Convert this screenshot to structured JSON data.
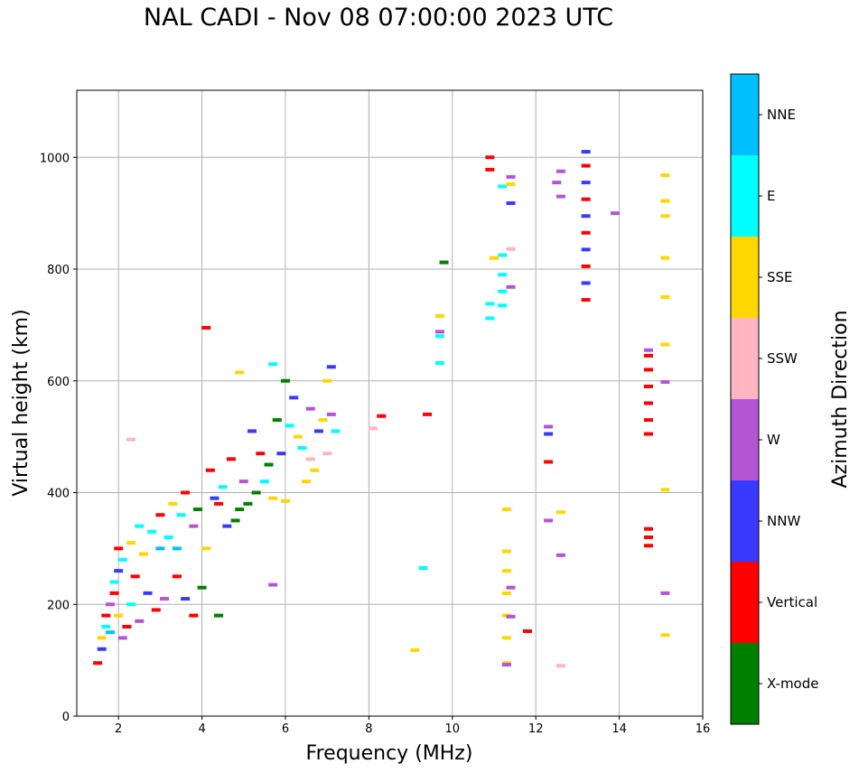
{
  "chart_data": {
    "type": "scatter",
    "title": "NAL CADI - Nov 08 07:00:00 2023 UTC",
    "xlabel": "Frequency (MHz)",
    "ylabel": "Virtual height (km)",
    "xlim": [
      1,
      16
    ],
    "ylim": [
      0,
      1120
    ],
    "xticks": [
      2,
      4,
      6,
      8,
      10,
      12,
      14,
      16
    ],
    "yticks": [
      0,
      200,
      400,
      600,
      800,
      1000
    ],
    "grid": true,
    "colorbar": {
      "title": "Azimuth Direction",
      "categories": [
        {
          "name": "X-mode",
          "color": "#008000"
        },
        {
          "name": "Vertical",
          "color": "#ff0000"
        },
        {
          "name": "NNW",
          "color": "#3a3aff"
        },
        {
          "name": "W",
          "color": "#b455d6"
        },
        {
          "name": "SSW",
          "color": "#ffb6c1"
        },
        {
          "name": "SSE",
          "color": "#ffd700"
        },
        {
          "name": "E",
          "color": "#00ffff"
        },
        {
          "name": "NNE",
          "color": "#00bfff"
        }
      ]
    },
    "trace_summary": {
      "low_band_scatter": "dense multicolor returns from ~1.5 to 7.2 MHz rising from ~90 km to ~630 km",
      "vertical_column_13.2MHz": "NNW/Vertical column 740-1015 km",
      "vertical_column_14.7MHz": "Vertical column 500-650 km and 300-340 km",
      "sse_column_11.3MHz": "SSE column 90-380 km",
      "e_column_11.2MHz": "E column 730-830 km"
    },
    "points": [
      [
        11.3,
        95,
        "SSE"
      ],
      [
        11.3,
        140,
        "SSE"
      ],
      [
        11.3,
        180,
        "SSE"
      ],
      [
        11.3,
        220,
        "SSE"
      ],
      [
        11.3,
        260,
        "SSE"
      ],
      [
        11.3,
        295,
        "SSE"
      ],
      [
        11.3,
        370,
        "SSE"
      ],
      [
        11.2,
        735,
        "E"
      ],
      [
        11.2,
        760,
        "E"
      ],
      [
        11.2,
        790,
        "E"
      ],
      [
        11.2,
        825,
        "E"
      ],
      [
        13.2,
        745,
        "Vertical"
      ],
      [
        13.2,
        775,
        "NNW"
      ],
      [
        13.2,
        805,
        "Vertical"
      ],
      [
        13.2,
        835,
        "NNW"
      ],
      [
        13.2,
        865,
        "Vertical"
      ],
      [
        13.2,
        895,
        "NNW"
      ],
      [
        13.2,
        925,
        "Vertical"
      ],
      [
        13.2,
        955,
        "NNW"
      ],
      [
        13.2,
        985,
        "Vertical"
      ],
      [
        13.2,
        1010,
        "NNW"
      ],
      [
        14.7,
        505,
        "Vertical"
      ],
      [
        14.7,
        530,
        "Vertical"
      ],
      [
        14.7,
        560,
        "Vertical"
      ],
      [
        14.7,
        590,
        "Vertical"
      ],
      [
        14.7,
        620,
        "Vertical"
      ],
      [
        14.7,
        645,
        "Vertical"
      ],
      [
        14.7,
        655,
        "W"
      ],
      [
        14.7,
        305,
        "Vertical"
      ],
      [
        14.7,
        320,
        "Vertical"
      ],
      [
        14.7,
        335,
        "Vertical"
      ],
      [
        15.1,
        145,
        "SSE"
      ],
      [
        15.1,
        220,
        "W"
      ],
      [
        15.1,
        405,
        "SSE"
      ],
      [
        15.1,
        598,
        "W"
      ],
      [
        15.1,
        665,
        "SSE"
      ],
      [
        15.1,
        750,
        "SSE"
      ],
      [
        15.1,
        820,
        "SSE"
      ],
      [
        15.1,
        895,
        "SSE"
      ],
      [
        15.1,
        922,
        "SSE"
      ],
      [
        15.1,
        968,
        "SSE"
      ],
      [
        12.3,
        505,
        "NNW"
      ],
      [
        12.3,
        518,
        "W"
      ],
      [
        12.3,
        455,
        "Vertical"
      ],
      [
        12.3,
        350,
        "W"
      ],
      [
        12.6,
        365,
        "SSE"
      ],
      [
        12.6,
        288,
        "W"
      ],
      [
        12.6,
        90,
        "SSW"
      ],
      [
        12.5,
        955,
        "W"
      ],
      [
        12.6,
        930,
        "W"
      ],
      [
        12.6,
        975,
        "W"
      ],
      [
        13.9,
        900,
        "W"
      ],
      [
        11.8,
        152,
        "Vertical"
      ],
      [
        11.4,
        230,
        "W"
      ],
      [
        11.4,
        178,
        "W"
      ],
      [
        11.3,
        92,
        "W"
      ],
      [
        10.9,
        1000,
        "Vertical"
      ],
      [
        10.9,
        978,
        "Vertical"
      ],
      [
        11.2,
        948,
        "E"
      ],
      [
        11.4,
        952,
        "SSE"
      ],
      [
        11.4,
        965,
        "W"
      ],
      [
        11.4,
        918,
        "NNW"
      ],
      [
        11.4,
        836,
        "SSW"
      ],
      [
        11.4,
        768,
        "W"
      ],
      [
        11.0,
        820,
        "SSE"
      ],
      [
        10.9,
        738,
        "E"
      ],
      [
        10.9,
        712,
        "E"
      ],
      [
        9.8,
        812,
        "X-mode"
      ],
      [
        9.7,
        716,
        "SSE"
      ],
      [
        9.7,
        688,
        "W"
      ],
      [
        9.7,
        680,
        "E"
      ],
      [
        9.7,
        632,
        "E"
      ],
      [
        9.4,
        540,
        "Vertical"
      ],
      [
        8.3,
        537,
        "Vertical"
      ],
      [
        8.1,
        515,
        "SSW"
      ],
      [
        9.3,
        265,
        "E"
      ],
      [
        9.1,
        118,
        "SSE"
      ],
      [
        4.1,
        695,
        "Vertical"
      ],
      [
        1.5,
        95,
        "Vertical"
      ],
      [
        1.6,
        120,
        "NNW"
      ],
      [
        1.6,
        140,
        "SSE"
      ],
      [
        1.7,
        160,
        "E"
      ],
      [
        1.7,
        180,
        "Vertical"
      ],
      [
        1.8,
        200,
        "W"
      ],
      [
        1.8,
        150,
        "NNE"
      ],
      [
        1.9,
        220,
        "Vertical"
      ],
      [
        1.9,
        240,
        "E"
      ],
      [
        2.0,
        260,
        "NNW"
      ],
      [
        2.0,
        180,
        "SSE"
      ],
      [
        2.0,
        300,
        "Vertical"
      ],
      [
        2.1,
        280,
        "E"
      ],
      [
        2.1,
        140,
        "W"
      ],
      [
        2.2,
        160,
        "Vertical"
      ],
      [
        2.3,
        310,
        "SSE"
      ],
      [
        2.3,
        200,
        "E"
      ],
      [
        2.4,
        250,
        "Vertical"
      ],
      [
        2.5,
        170,
        "W"
      ],
      [
        2.5,
        340,
        "E"
      ],
      [
        2.6,
        290,
        "SSE"
      ],
      [
        2.7,
        220,
        "NNW"
      ],
      [
        2.8,
        330,
        "E"
      ],
      [
        2.9,
        190,
        "Vertical"
      ],
      [
        3.0,
        300,
        "NNE"
      ],
      [
        3.0,
        360,
        "Vertical"
      ],
      [
        3.1,
        210,
        "W"
      ],
      [
        3.2,
        320,
        "E"
      ],
      [
        3.3,
        380,
        "SSE"
      ],
      [
        3.4,
        250,
        "Vertical"
      ],
      [
        3.4,
        300,
        "NNE"
      ],
      [
        3.5,
        360,
        "E"
      ],
      [
        3.6,
        210,
        "NNW"
      ],
      [
        3.6,
        400,
        "Vertical"
      ],
      [
        3.8,
        340,
        "W"
      ],
      [
        3.9,
        370,
        "X-mode"
      ],
      [
        4.0,
        230,
        "X-mode"
      ],
      [
        4.1,
        300,
        "SSE"
      ],
      [
        4.2,
        440,
        "Vertical"
      ],
      [
        4.3,
        390,
        "NNW"
      ],
      [
        4.4,
        380,
        "Vertical"
      ],
      [
        4.5,
        410,
        "E"
      ],
      [
        4.6,
        340,
        "NNW"
      ],
      [
        4.7,
        460,
        "Vertical"
      ],
      [
        4.8,
        350,
        "X-mode"
      ],
      [
        4.9,
        370,
        "X-mode"
      ],
      [
        5.0,
        420,
        "W"
      ],
      [
        5.1,
        380,
        "X-mode"
      ],
      [
        5.2,
        510,
        "NNW"
      ],
      [
        5.3,
        400,
        "X-mode"
      ],
      [
        5.4,
        470,
        "Vertical"
      ],
      [
        5.5,
        420,
        "E"
      ],
      [
        5.6,
        450,
        "X-mode"
      ],
      [
        5.7,
        390,
        "SSE"
      ],
      [
        5.8,
        530,
        "X-mode"
      ],
      [
        5.9,
        470,
        "NNW"
      ],
      [
        6.0,
        385,
        "SSE"
      ],
      [
        6.0,
        600,
        "X-mode"
      ],
      [
        6.1,
        520,
        "E"
      ],
      [
        6.2,
        570,
        "NNW"
      ],
      [
        6.3,
        500,
        "SSE"
      ],
      [
        6.4,
        480,
        "E"
      ],
      [
        6.5,
        420,
        "SSE"
      ],
      [
        6.6,
        460,
        "SSW"
      ],
      [
        6.6,
        550,
        "W"
      ],
      [
        6.7,
        440,
        "SSE"
      ],
      [
        6.8,
        510,
        "NNW"
      ],
      [
        6.9,
        530,
        "SSE"
      ],
      [
        7.0,
        470,
        "SSW"
      ],
      [
        7.1,
        540,
        "W"
      ],
      [
        7.2,
        510,
        "E"
      ],
      [
        7.0,
        600,
        "SSE"
      ],
      [
        7.1,
        625,
        "NNW"
      ],
      [
        5.7,
        630,
        "E"
      ],
      [
        4.9,
        615,
        "SSE"
      ],
      [
        2.3,
        495,
        "SSW"
      ],
      [
        3.8,
        180,
        "Vertical"
      ],
      [
        4.4,
        180,
        "X-mode"
      ],
      [
        5.7,
        235,
        "W"
      ]
    ]
  }
}
